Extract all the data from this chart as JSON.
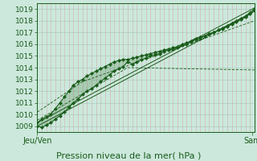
{
  "xlabel": "Pression niveau de la mer( hPa )",
  "ylim": [
    1008.5,
    1019.5
  ],
  "xlim": [
    0,
    96
  ],
  "yticks": [
    1009,
    1010,
    1011,
    1012,
    1013,
    1014,
    1015,
    1016,
    1017,
    1018,
    1019
  ],
  "xtick_positions": [
    0,
    95
  ],
  "xtick_labels": [
    "Jeu/Ven",
    "Sam"
  ],
  "bg_color": "#cce8dc",
  "grid_color_h": "#a8cfc0",
  "grid_color_v": "#d4a0a0",
  "line_color": "#1a5c1a",
  "marker_color": "#1a5c1a",
  "fill_color": "#3a7a3a",
  "line1_x": [
    0,
    2,
    4,
    6,
    8,
    10,
    12,
    14,
    16,
    18,
    20,
    22,
    24,
    26,
    28,
    30,
    32,
    34,
    36,
    38,
    40,
    42,
    44,
    46,
    48,
    50,
    52,
    54,
    56,
    58,
    60,
    62,
    64,
    66,
    68,
    70,
    72,
    74,
    76,
    78,
    80,
    82,
    84,
    86,
    88,
    90,
    92,
    94,
    96
  ],
  "line1_y": [
    1009.0,
    1008.9,
    1009.1,
    1009.3,
    1009.6,
    1009.9,
    1010.2,
    1010.6,
    1011.0,
    1011.3,
    1011.7,
    1012.0,
    1012.2,
    1012.5,
    1012.8,
    1013.1,
    1013.4,
    1013.7,
    1013.9,
    1014.1,
    1014.5,
    1014.3,
    1014.5,
    1014.7,
    1014.8,
    1015.0,
    1015.1,
    1015.2,
    1015.4,
    1015.5,
    1015.6,
    1015.7,
    1015.9,
    1016.0,
    1016.2,
    1016.4,
    1016.5,
    1016.7,
    1016.9,
    1017.0,
    1017.2,
    1017.3,
    1017.5,
    1017.7,
    1017.9,
    1018.1,
    1018.3,
    1018.6,
    1018.9
  ],
  "line2_x": [
    0,
    2,
    4,
    6,
    8,
    10,
    12,
    14,
    16,
    18,
    20,
    22,
    24,
    26,
    28,
    30,
    32,
    34,
    36,
    38,
    40,
    42,
    44,
    46,
    48,
    50,
    52,
    54,
    56,
    58,
    60,
    62,
    64,
    66,
    68,
    70,
    72,
    74,
    76,
    78,
    80,
    82,
    84,
    86,
    88,
    90,
    92,
    94,
    96
  ],
  "line2_y": [
    1009.3,
    1009.6,
    1009.8,
    1010.0,
    1010.5,
    1011.0,
    1011.5,
    1012.0,
    1012.5,
    1012.8,
    1013.0,
    1013.3,
    1013.5,
    1013.7,
    1013.9,
    1014.1,
    1014.3,
    1014.5,
    1014.6,
    1014.7,
    1014.7,
    1014.8,
    1014.9,
    1015.0,
    1015.1,
    1015.2,
    1015.3,
    1015.4,
    1015.5,
    1015.6,
    1015.7,
    1015.8,
    1016.0,
    1016.1,
    1016.3,
    1016.5,
    1016.6,
    1016.7,
    1016.9,
    1017.0,
    1017.2,
    1017.4,
    1017.6,
    1017.8,
    1018.0,
    1018.2,
    1018.4,
    1018.7,
    1019.0
  ],
  "trend1_x": [
    0,
    96
  ],
  "trend1_y": [
    1009.0,
    1018.8
  ],
  "trend2_x": [
    0,
    96
  ],
  "trend2_y": [
    1009.3,
    1019.1
  ],
  "trend3_x": [
    0,
    40,
    96
  ],
  "trend3_y": [
    1009.5,
    1014.0,
    1013.8
  ],
  "trend4_x": [
    0,
    20,
    96
  ],
  "trend4_y": [
    1010.2,
    1012.8,
    1018.0
  ]
}
